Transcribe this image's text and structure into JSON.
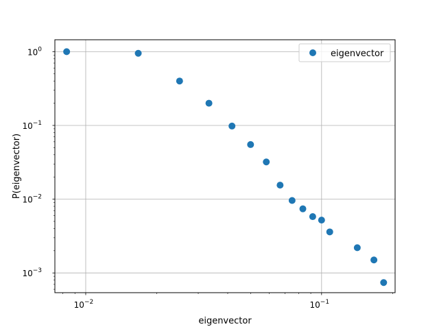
{
  "chart_data": {
    "type": "scatter",
    "title": "",
    "xlabel": "eigenvector",
    "ylabel": "P(eigenvector)",
    "xscale": "log",
    "yscale": "log",
    "xlim": [
      0.0074,
      0.205
    ],
    "ylim": [
      0.00054,
      1.45
    ],
    "grid": true,
    "legend_position": "upper-right",
    "x_major_ticks": [
      0.01,
      0.1
    ],
    "x_tick_labels": [
      "10",
      "10"
    ],
    "x_tick_exponents": [
      "−2",
      "−1"
    ],
    "x_minor_ticks": [
      0.008,
      0.009,
      0.02,
      0.03,
      0.04,
      0.05,
      0.06,
      0.07,
      0.08,
      0.09,
      0.2
    ],
    "y_major_ticks": [
      0.001,
      0.01,
      0.1,
      1
    ],
    "y_tick_labels": [
      "10",
      "10",
      "10",
      "10"
    ],
    "y_tick_exponents": [
      "−3",
      "−2",
      "−1",
      "0"
    ],
    "series": [
      {
        "name": "eigenvector",
        "color": "#1f77b4",
        "marker": "circle",
        "x": [
          0.0083,
          0.0167,
          0.025,
          0.0333,
          0.0417,
          0.05,
          0.0583,
          0.0667,
          0.075,
          0.0833,
          0.0917,
          0.1,
          0.1083,
          0.1417,
          0.1667,
          0.1833
        ],
        "y": [
          1.0,
          0.95,
          0.4,
          0.2,
          0.098,
          0.055,
          0.032,
          0.0155,
          0.0096,
          0.0074,
          0.0058,
          0.0052,
          0.0036,
          0.0022,
          0.0015,
          0.00074
        ]
      }
    ]
  }
}
